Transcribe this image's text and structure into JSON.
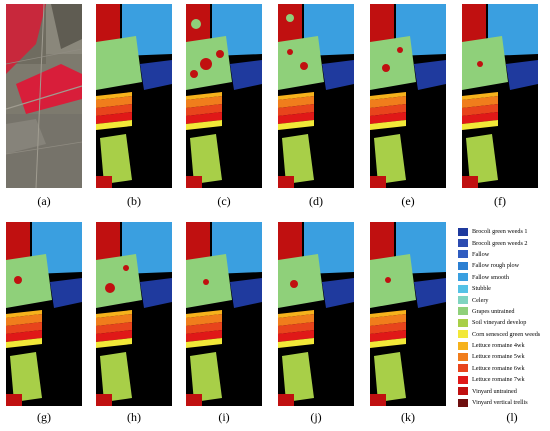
{
  "figure": {
    "panel_labels": [
      "(a)",
      "(b)",
      "(c)",
      "(d)",
      "(e)",
      "(f)",
      "(g)",
      "(h)",
      "(i)",
      "(j)",
      "(k)",
      "(l)"
    ]
  },
  "legend": [
    {
      "label": "Brocoli green weeds 1",
      "color": "#1f3a9e"
    },
    {
      "label": "Brocoli green weeds 2",
      "color": "#2c4bb0"
    },
    {
      "label": "Fallow",
      "color": "#2f5cc0"
    },
    {
      "label": "Fallow rough plow",
      "color": "#2b7fd2"
    },
    {
      "label": "Fallow smooth",
      "color": "#3a9fe0"
    },
    {
      "label": "Stubble",
      "color": "#55c2e6"
    },
    {
      "label": "Celery",
      "color": "#7fd4c0"
    },
    {
      "label": "Grapes untrained",
      "color": "#8fd07a"
    },
    {
      "label": "Soil vineyard develop",
      "color": "#a8cf48"
    },
    {
      "label": "Corn senesced green weeds",
      "color": "#f2e838"
    },
    {
      "label": "Lettuce romaine 4wk",
      "color": "#f6b21c"
    },
    {
      "label": "Lettuce romaine 5wk",
      "color": "#f07d1c"
    },
    {
      "label": "Lettuce romaine 6wk",
      "color": "#e8441c"
    },
    {
      "label": "Lettuce romaine 7wk",
      "color": "#e01818"
    },
    {
      "label": "Vinyard untrained",
      "color": "#c01010"
    },
    {
      "label": "Vinyard vertical trellis",
      "color": "#6e0e0e"
    }
  ]
}
